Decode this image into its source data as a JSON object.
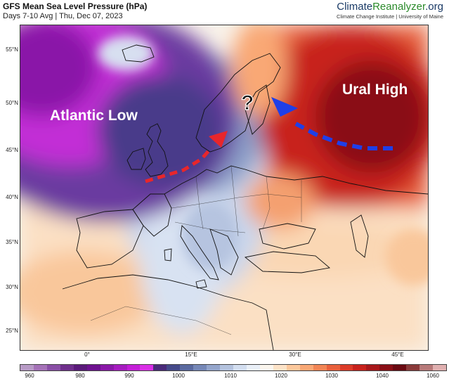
{
  "header": {
    "title": "GFS Mean Sea Level Pressure (hPa)",
    "subtitle": "Days 7-10 Avg | Thu, Dec 07, 2023"
  },
  "brand": {
    "name_part1": "Climate",
    "name_part2": "Reanalyzer",
    "name_part3": ".org",
    "sub": "Climate Change Institute | University of Maine"
  },
  "map": {
    "labels": {
      "low": "Atlantic Low",
      "high": "Ural High",
      "question": "?"
    },
    "latitude_ticks": [
      "55°N",
      "50°N",
      "45°N",
      "40°N",
      "35°N",
      "30°N",
      "25°N"
    ],
    "longitude_ticks": [
      "0°",
      "15°E",
      "30°E",
      "45°E"
    ],
    "arrow_colors": {
      "red": "#e8262b",
      "blue": "#1f3fe8"
    }
  },
  "colorbar": {
    "tick_labels": [
      "960",
      "980",
      "990",
      "1000",
      "1010",
      "1020",
      "1030",
      "1040",
      "1060"
    ],
    "colors": [
      "#b89bc6",
      "#a572b8",
      "#8a4fa6",
      "#6f2f8c",
      "#5a1a7a",
      "#6e1290",
      "#8a18a8",
      "#a61cc0",
      "#c41fd8",
      "#d92fe6",
      "#4a2a7a",
      "#454a8a",
      "#5a6aa0",
      "#7688b8",
      "#95a6cc",
      "#b4c3de",
      "#d3def0",
      "#eaf0f8",
      "#fbf6ee",
      "#fde3c8",
      "#fcc89c",
      "#f9a875",
      "#f28555",
      "#e9603c",
      "#dc3b28",
      "#c8221c",
      "#a8171a",
      "#8a0f16",
      "#6a0a12",
      "#8a3a3a",
      "#b87a7a",
      "#e0b0b0"
    ]
  }
}
